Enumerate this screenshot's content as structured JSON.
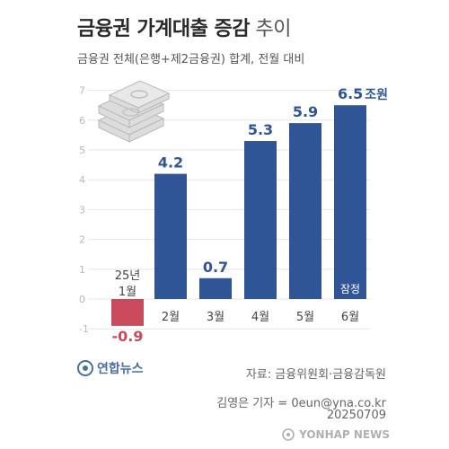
{
  "header": {
    "title_bold": "금융권 가계대출 증감",
    "title_light": "추이",
    "subtitle": "금융권 전체(은행+제2금융권) 합계, 전월 대비"
  },
  "footer": {
    "source": "자료: 금융위원회·금융감독원",
    "reporter": "김영은 기자 = 0eun@yna.co.kr",
    "date": "20250709",
    "logo_text": "연합뉴스",
    "watermark_text": "YONHAP NEWS"
  },
  "colors": {
    "positive": "#2f5597",
    "negative": "#c94a5c",
    "grid": "#e6e6e6",
    "axis_text": "#b8b8b8"
  },
  "chart_data": {
    "type": "bar",
    "categories": [
      "25년\n1월",
      "2월",
      "3월",
      "4월",
      "5월",
      "6월"
    ],
    "values": [
      -0.9,
      4.2,
      0.7,
      5.3,
      5.9,
      6.5
    ],
    "value_labels": [
      "-0.9",
      "4.2",
      "0.7",
      "5.3",
      "5.9",
      "6.5"
    ],
    "unit": "조원",
    "annotations": [
      {
        "category_index": 5,
        "text": "잠정"
      }
    ],
    "ylim": [
      -1,
      7
    ],
    "yticks": [
      -1,
      0,
      1,
      2,
      3,
      4,
      5,
      6,
      7
    ],
    "grid": true
  }
}
